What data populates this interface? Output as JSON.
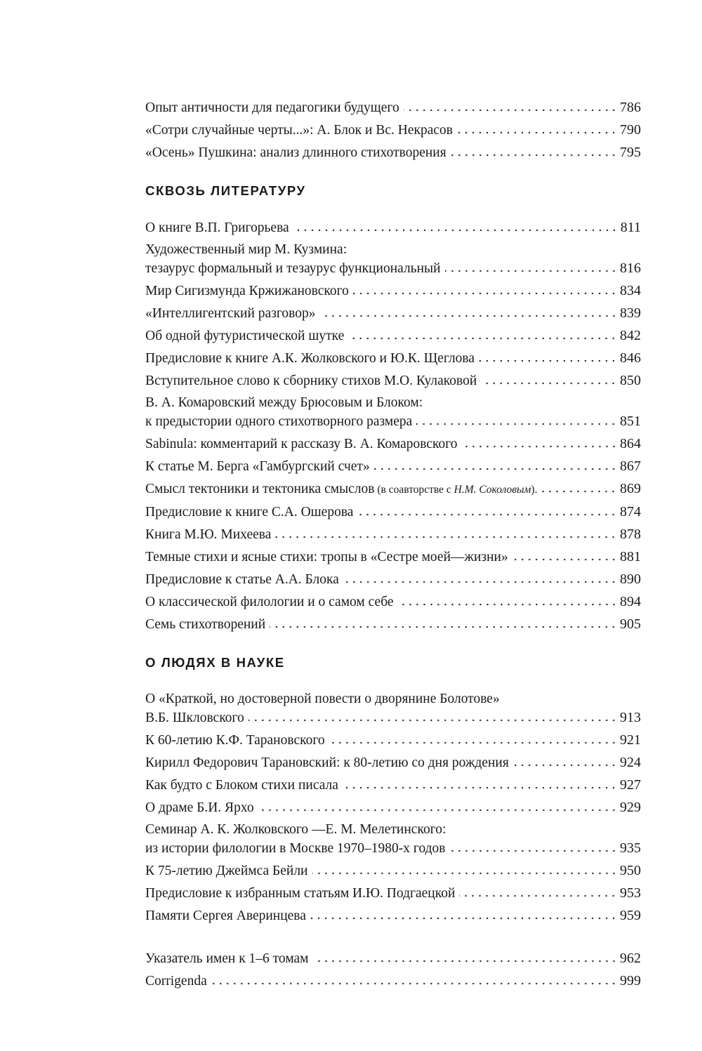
{
  "sections": [
    {
      "heading": "",
      "entries": [
        {
          "lines": [],
          "title": "Опыт античности для педагогики будущего",
          "page": "786"
        },
        {
          "lines": [],
          "title": "«Сотри случайные черты...»: А. Блок и Вс. Некрасов",
          "page": "790"
        },
        {
          "lines": [],
          "title": "«Осень» Пушкина: анализ длинного стихотворения",
          "page": "795"
        }
      ]
    },
    {
      "heading": "СКВОЗЬ ЛИТЕРАТУРУ",
      "entries": [
        {
          "lines": [],
          "title": "О книге В.П. Григорьева",
          "page": "811"
        },
        {
          "lines": [
            "Художественный мир М. Кузмина:"
          ],
          "title": "тезаурус формальный и тезаурус функциональный",
          "page": "816"
        },
        {
          "lines": [],
          "title": "Мир Сигизмунда Кржижановского",
          "page": "834"
        },
        {
          "lines": [],
          "title": "«Интеллигентский разговор»",
          "page": "839"
        },
        {
          "lines": [],
          "title": "Об одной футуристической шутке",
          "page": "842"
        },
        {
          "lines": [],
          "title": "Предисловие к книге А.К. Жолковского и Ю.К. Щеглова",
          "page": "846"
        },
        {
          "lines": [],
          "title": "Вступительное слово к сборнику стихов М.О. Кулаковой",
          "page": "850"
        },
        {
          "lines": [
            "В. А. Комаровский между Брюсовым и Блоком:"
          ],
          "title": "к предыстории одного стихотворного размера",
          "page": "851"
        },
        {
          "lines": [],
          "title": "Sabinula: комментарий к рассказу В. А. Комаровского",
          "page": "864"
        },
        {
          "lines": [],
          "title": "К статье М. Берга «Гамбургский счет»",
          "page": "867"
        },
        {
          "lines": [],
          "title": "Смысл тектоники и тектоника смыслов",
          "note": " (в соавторстве с ",
          "note_name": "Н.М. Соколовым",
          "note_end": ").",
          "page": "869"
        },
        {
          "lines": [],
          "title": "Предисловие к книге С.А. Ошерова",
          "page": "874"
        },
        {
          "lines": [],
          "title": "Книга М.Ю. Михеева",
          "page": "878"
        },
        {
          "lines": [],
          "title": "Темные стихи и ясные стихи: тропы в «Сестре моей—жизни»",
          "page": "881"
        },
        {
          "lines": [],
          "title": "Предисловие к статье А.А. Блока",
          "page": "890"
        },
        {
          "lines": [],
          "title": "О классической филологии и о самом себе",
          "page": "894"
        },
        {
          "lines": [],
          "title": "Семь стихотворений",
          "page": "905"
        }
      ]
    },
    {
      "heading": "О ЛЮДЯХ В НАУКЕ",
      "entries": [
        {
          "lines": [
            "О «Краткой, но достоверной повести о дворянине Болотове»"
          ],
          "title": "В.Б. Шкловского",
          "page": "913"
        },
        {
          "lines": [],
          "title": "К 60-летию К.Ф. Тарановского",
          "page": "921"
        },
        {
          "lines": [],
          "title": "Кирилл Федорович Тарановский: к 80-летию со дня рождения",
          "page": "924"
        },
        {
          "lines": [],
          "title": "Как будто с Блоком стихи писала",
          "page": "927"
        },
        {
          "lines": [],
          "title": "О драме Б.И. Ярхо",
          "page": "929"
        },
        {
          "lines": [
            "Семинар А. К. Жолковского —Е. М. Мелетинского:"
          ],
          "title": "из истории филологии в Москве 1970–1980-х годов",
          "page": "935"
        },
        {
          "lines": [],
          "title": "К 75-летию Джеймса Бейли",
          "page": "950"
        },
        {
          "lines": [],
          "title": "Предисловие к избранным статьям И.Ю. Подгаецкой",
          "page": "953"
        },
        {
          "lines": [],
          "title": "Памяти Сергея Аверинцева",
          "page": "959"
        }
      ]
    },
    {
      "heading": "",
      "entries": [
        {
          "lines": [],
          "title": "Указатель имен к 1–6 томам",
          "page": "962"
        },
        {
          "lines": [],
          "title": "Corrigenda",
          "page": "999"
        }
      ]
    }
  ]
}
